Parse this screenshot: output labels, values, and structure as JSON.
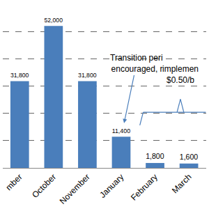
{
  "chart_data": {
    "type": "bar",
    "categories": [
      "mber",
      "October",
      "November",
      "January",
      "February",
      "March"
    ],
    "values": [
      31800,
      52000,
      31800,
      11400,
      1800,
      1600
    ],
    "value_labels": [
      "31,800",
      "52,000",
      "31,800",
      "11,400",
      "1,800",
      "1,600"
    ],
    "color": "#4a7ebb",
    "ylim": [
      0,
      60000
    ],
    "yticks": [
      0,
      10000,
      20000,
      30000,
      40000,
      50000,
      60000
    ],
    "grid": true,
    "data_labels": true,
    "tick_labels": "x",
    "annotations": [
      {
        "text": [
          "Transition peri",
          "encouraged, r"
        ],
        "category": "January"
      },
      {
        "text": [
          "implemen",
          "$0.50/b"
        ],
        "category": "February"
      }
    ]
  }
}
